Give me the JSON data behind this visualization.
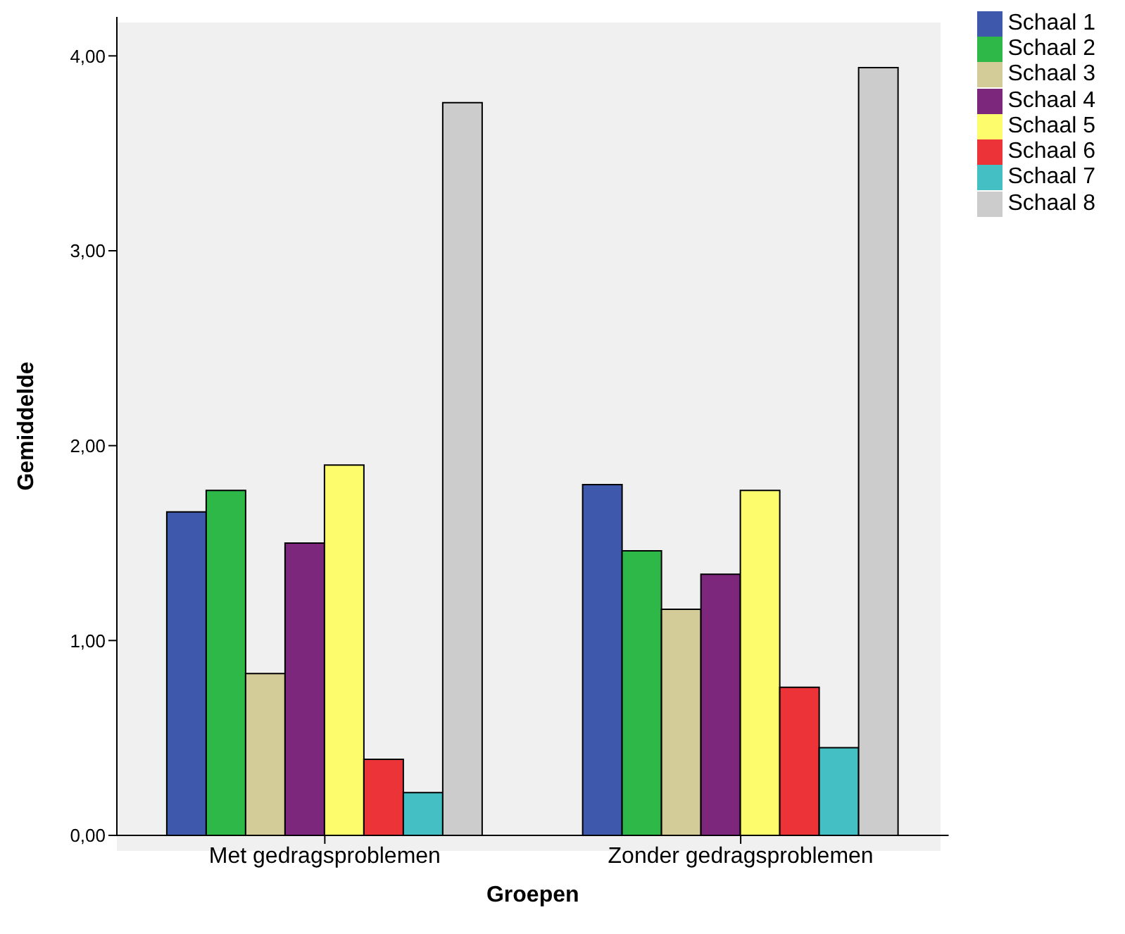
{
  "chart_data": {
    "type": "bar",
    "xlabel": "Groepen",
    "ylabel": "Gemiddelde",
    "categories": [
      "Met gedragsproblemen",
      "Zonder gedragsproblemen"
    ],
    "series": [
      {
        "name": "Schaal 1",
        "color": "#3e58ac",
        "values": [
          1.66,
          1.8
        ]
      },
      {
        "name": "Schaal 2",
        "color": "#2eb848",
        "values": [
          1.77,
          1.46
        ]
      },
      {
        "name": "Schaal 3",
        "color": "#d4cc98",
        "values": [
          0.83,
          1.16
        ]
      },
      {
        "name": "Schaal 4",
        "color": "#7c267c",
        "values": [
          1.5,
          1.34
        ]
      },
      {
        "name": "Schaal 5",
        "color": "#fcfc6c",
        "values": [
          1.9,
          1.77
        ]
      },
      {
        "name": "Schaal 6",
        "color": "#ec3438",
        "values": [
          0.39,
          0.76
        ]
      },
      {
        "name": "Schaal 7",
        "color": "#44c0c4",
        "values": [
          0.22,
          0.45
        ]
      },
      {
        "name": "Schaal 8",
        "color": "#cccccc",
        "values": [
          3.76,
          3.94
        ]
      }
    ],
    "ylim": [
      0,
      4.2
    ],
    "yticks": [
      {
        "value": 0,
        "label": "0,00"
      },
      {
        "value": 1,
        "label": "1,00"
      },
      {
        "value": 2,
        "label": "2,00"
      },
      {
        "value": 3,
        "label": "3,00"
      },
      {
        "value": 4,
        "label": "4,00"
      }
    ],
    "grid": false,
    "legend": "top right"
  }
}
